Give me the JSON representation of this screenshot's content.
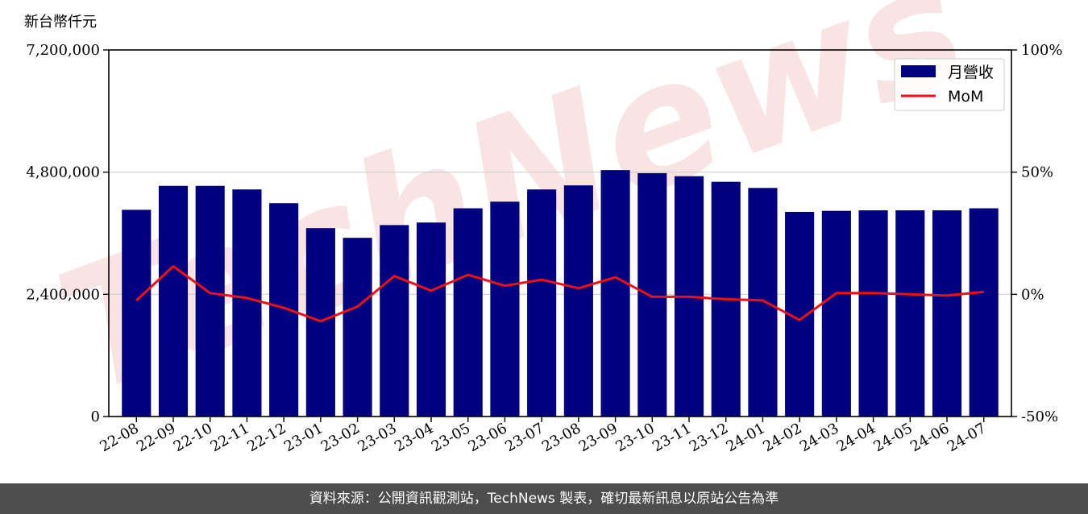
{
  "colors": {
    "bar": "#000080",
    "line": "#ee1111",
    "grid": "#d0d0d0",
    "watermark": "#f2c4c4",
    "footer_bg": "#4d4d4d"
  },
  "watermark": {
    "text": "TechNews"
  },
  "footer": {
    "text": "資料來源：公開資訊觀測站，TechNews 製表，確切最新訊息以原站公告為準"
  },
  "chart_data": {
    "type": "bar",
    "ylabel": "新台幣仟元",
    "categories": [
      "22-08",
      "22-09",
      "22-10",
      "22-11",
      "22-12",
      "23-01",
      "23-02",
      "23-03",
      "23-04",
      "23-05",
      "23-06",
      "23-07",
      "23-08",
      "23-09",
      "23-10",
      "23-11",
      "23-12",
      "24-01",
      "24-02",
      "24-03",
      "24-04",
      "24-05",
      "24-06",
      "24-07"
    ],
    "ylim": [
      0,
      7200000
    ],
    "yticks": [
      0,
      2400000,
      4800000,
      7200000
    ],
    "ytick_labels": [
      "0",
      "2,400,000",
      "4,800,000",
      "7,200,000"
    ],
    "y2lim": [
      -50,
      100
    ],
    "y2ticks": [
      -50,
      0,
      50,
      100
    ],
    "y2tick_labels": [
      "-50%",
      "0%",
      "50%",
      "100%"
    ],
    "grid": true,
    "legend": "top-right",
    "series": [
      {
        "name": "月營收",
        "type": "bar",
        "axis": "left",
        "values": [
          4060000,
          4530000,
          4530000,
          4460000,
          4190000,
          3700000,
          3510000,
          3760000,
          3810000,
          4090000,
          4220000,
          4460000,
          4540000,
          4840000,
          4780000,
          4720000,
          4610000,
          4490000,
          4020000,
          4040000,
          4050000,
          4050000,
          4050000,
          4090000
        ]
      },
      {
        "name": "MoM",
        "type": "line",
        "axis": "right",
        "values": [
          -2.5,
          11.5,
          0.5,
          -1.5,
          -5.5,
          -11.0,
          -5.0,
          7.5,
          1.5,
          8.0,
          3.5,
          6.0,
          2.5,
          7.0,
          -1.0,
          -1.0,
          -2.0,
          -2.5,
          -10.5,
          0.5,
          0.5,
          0.0,
          -0.5,
          1.0
        ]
      }
    ]
  }
}
